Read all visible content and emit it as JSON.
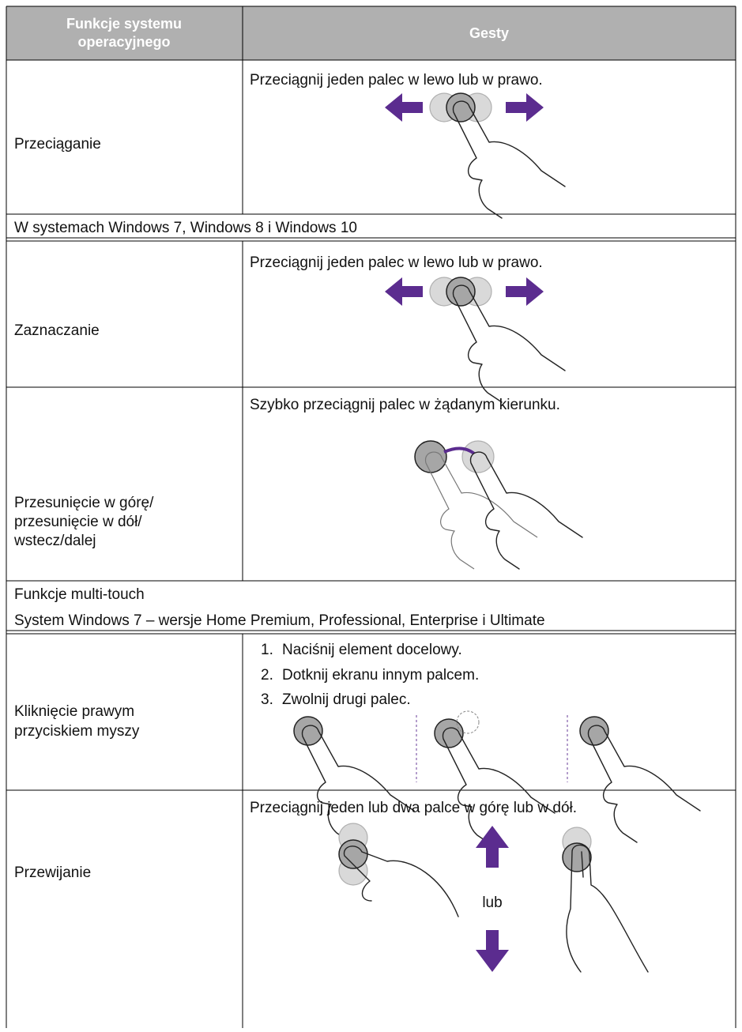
{
  "table": {
    "header": [
      "Funkcje systemu operacyjnego",
      "Gesty"
    ],
    "rows": [
      {
        "function": [
          "Przeciąganie"
        ],
        "gesture": "Przeciągnij jeden palec w lewo lub w prawo."
      },
      {
        "section": [
          "W systemach Windows 7, Windows 8 i Windows 10"
        ]
      },
      {
        "function": [
          "Zaznaczanie"
        ],
        "gesture": "Przeciągnij jeden palec w lewo lub w prawo."
      },
      {
        "function": [
          "Przesunięcie w górę/",
          "przesunięcie w dół/",
          "wstecz/dalej"
        ],
        "gesture": "Szybko przeciągnij palec w żądanym kierunku."
      },
      {
        "section": [
          "Funkcje multi-touch",
          "System Windows 7 – wersje Home Premium, Professional, Enterprise i Ultimate"
        ]
      },
      {
        "function": [
          "Kliknięcie prawym",
          "przyciskiem myszy"
        ],
        "steps": [
          {
            "number": "1.",
            "text": "Naciśnij element docelowy."
          },
          {
            "number": "2.",
            "text": "Dotknij ekranu innym palcem."
          },
          {
            "number": "3.",
            "text": "Zwolnij drugi palec."
          }
        ]
      },
      {
        "function": [
          "Przewijanie"
        ],
        "gesture": "Przeciągnij jeden lub dwa palce w górę lub w dół.",
        "or_label": "lub"
      }
    ]
  }
}
